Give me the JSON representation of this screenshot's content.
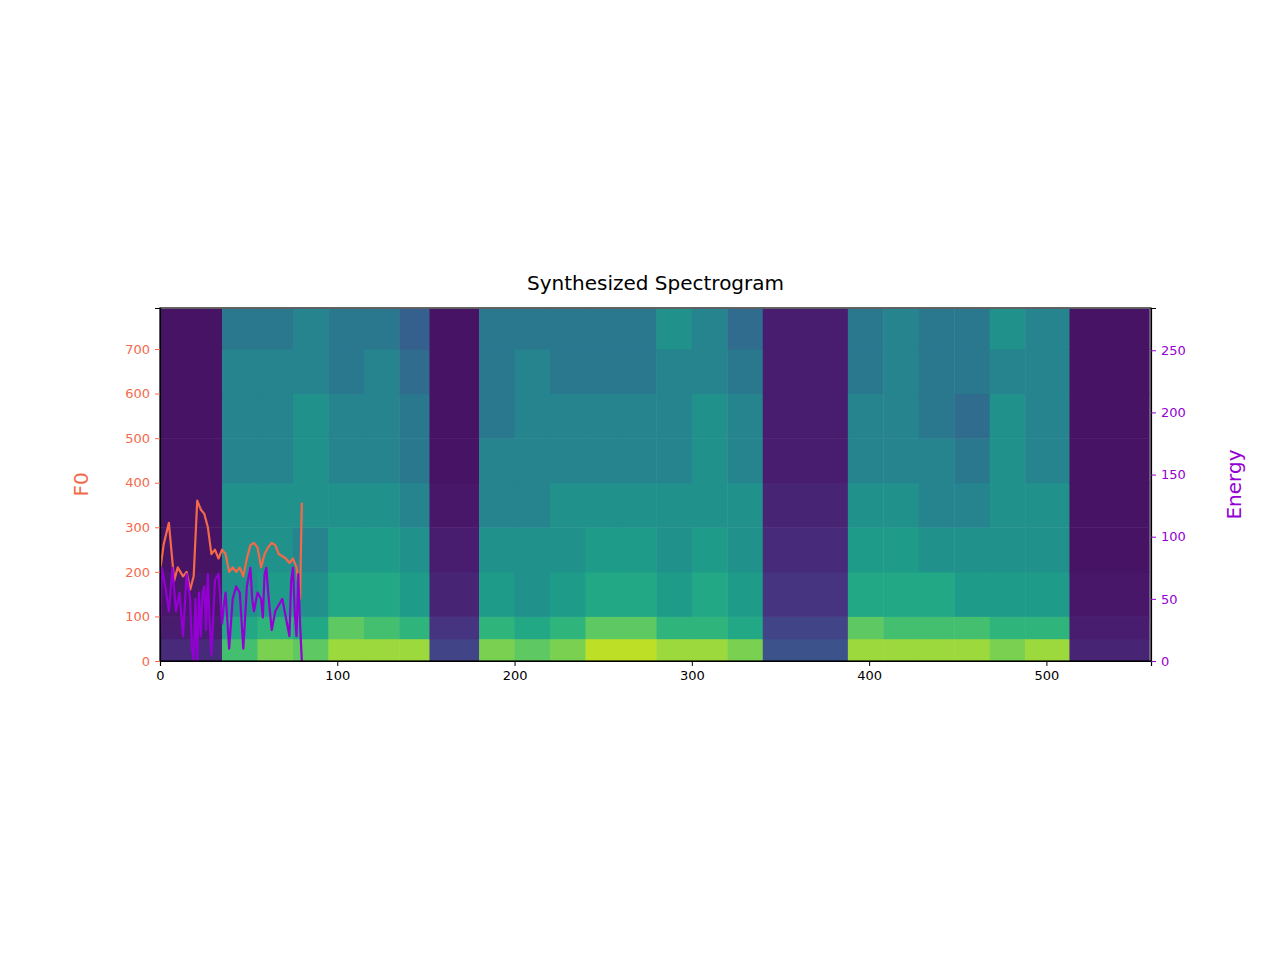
{
  "chart_data": {
    "type": "heatmap",
    "title": "Synthesized Spectrogram",
    "y_label": "F0",
    "y2_label": "Energy",
    "xlim": [
      0,
      559
    ],
    "ylim": [
      0,
      792
    ],
    "y2lim": [
      0,
      284
    ],
    "xticks": [
      0,
      100,
      200,
      300,
      400,
      500
    ],
    "yticks": [
      0,
      100,
      200,
      300,
      400,
      500,
      600,
      700
    ],
    "y2ticks": [
      0,
      50,
      100,
      150,
      200,
      250
    ],
    "heatmap": {
      "x_edges": [
        0,
        35,
        55,
        75,
        95,
        115,
        135,
        152,
        180,
        200,
        220,
        240,
        260,
        280,
        300,
        320,
        340,
        388,
        408,
        428,
        448,
        468,
        488,
        513,
        558
      ],
      "y_edges": [
        0,
        50,
        100,
        200,
        300,
        400,
        500,
        600,
        700,
        790
      ],
      "color_range": [
        0,
        1
      ],
      "cells": [
        [
          0.12,
          0.08,
          0.06,
          0.05,
          0.05,
          0.05,
          0.05,
          0.05,
          0.05
        ],
        [
          0.7,
          0.6,
          0.5,
          0.5,
          0.5,
          0.45,
          0.45,
          0.45,
          0.4
        ],
        [
          0.8,
          0.65,
          0.55,
          0.5,
          0.5,
          0.45,
          0.45,
          0.45,
          0.4
        ],
        [
          0.75,
          0.6,
          0.5,
          0.45,
          0.5,
          0.5,
          0.5,
          0.45,
          0.45
        ],
        [
          0.85,
          0.75,
          0.6,
          0.55,
          0.5,
          0.45,
          0.45,
          0.4,
          0.4
        ],
        [
          0.85,
          0.7,
          0.6,
          0.55,
          0.5,
          0.45,
          0.45,
          0.45,
          0.4
        ],
        [
          0.85,
          0.65,
          0.55,
          0.5,
          0.45,
          0.4,
          0.4,
          0.35,
          0.3
        ],
        [
          0.2,
          0.15,
          0.1,
          0.08,
          0.06,
          0.05,
          0.05,
          0.05,
          0.05
        ],
        [
          0.8,
          0.65,
          0.55,
          0.5,
          0.45,
          0.45,
          0.4,
          0.4,
          0.4
        ],
        [
          0.75,
          0.6,
          0.5,
          0.5,
          0.45,
          0.45,
          0.45,
          0.45,
          0.4
        ],
        [
          0.8,
          0.65,
          0.55,
          0.5,
          0.5,
          0.45,
          0.45,
          0.4,
          0.4
        ],
        [
          0.9,
          0.75,
          0.6,
          0.55,
          0.5,
          0.45,
          0.45,
          0.4,
          0.4
        ],
        [
          0.9,
          0.75,
          0.6,
          0.55,
          0.5,
          0.45,
          0.45,
          0.4,
          0.4
        ],
        [
          0.85,
          0.65,
          0.55,
          0.5,
          0.5,
          0.45,
          0.45,
          0.45,
          0.5
        ],
        [
          0.85,
          0.65,
          0.6,
          0.55,
          0.5,
          0.5,
          0.5,
          0.45,
          0.45
        ],
        [
          0.8,
          0.6,
          0.55,
          0.5,
          0.5,
          0.45,
          0.45,
          0.4,
          0.35
        ],
        [
          0.25,
          0.2,
          0.15,
          0.12,
          0.1,
          0.08,
          0.08,
          0.08,
          0.08
        ],
        [
          0.85,
          0.75,
          0.6,
          0.55,
          0.5,
          0.45,
          0.45,
          0.4,
          0.4
        ],
        [
          0.85,
          0.7,
          0.6,
          0.55,
          0.5,
          0.45,
          0.45,
          0.45,
          0.45
        ],
        [
          0.85,
          0.7,
          0.6,
          0.5,
          0.45,
          0.45,
          0.4,
          0.4,
          0.4
        ],
        [
          0.85,
          0.7,
          0.55,
          0.5,
          0.45,
          0.4,
          0.35,
          0.4,
          0.4
        ],
        [
          0.8,
          0.65,
          0.55,
          0.5,
          0.5,
          0.5,
          0.5,
          0.45,
          0.5
        ],
        [
          0.85,
          0.65,
          0.55,
          0.5,
          0.5,
          0.45,
          0.45,
          0.45,
          0.45
        ],
        [
          0.1,
          0.08,
          0.06,
          0.05,
          0.05,
          0.05,
          0.05,
          0.05,
          0.05
        ]
      ]
    },
    "series": [
      {
        "type": "line",
        "color": "#f4694a",
        "x": [
          0,
          2,
          5,
          8,
          10,
          13,
          15,
          17,
          19,
          21,
          23,
          25,
          27,
          29,
          31,
          33,
          35,
          37,
          39,
          41,
          43,
          45,
          47,
          49,
          51,
          53,
          55,
          57,
          59,
          61,
          63,
          65,
          67,
          69,
          71,
          73,
          75,
          77,
          79,
          80
        ],
        "values": [
          200,
          260,
          310,
          180,
          210,
          190,
          200,
          160,
          190,
          360,
          340,
          330,
          300,
          240,
          250,
          230,
          250,
          240,
          200,
          210,
          200,
          210,
          190,
          230,
          260,
          265,
          255,
          210,
          240,
          255,
          265,
          260,
          240,
          235,
          230,
          220,
          230,
          210,
          140,
          355
        ]
      },
      {
        "type": "line",
        "color": "#9400d3",
        "axis": "y2",
        "x": [
          0,
          1,
          3,
          5,
          7,
          9,
          11,
          13,
          15,
          17,
          18,
          19,
          20,
          21,
          22,
          23,
          24,
          25,
          26,
          27,
          28,
          29,
          31,
          33,
          35,
          36,
          37,
          39,
          41,
          43,
          45,
          47,
          49,
          51,
          52,
          53,
          55,
          57,
          58,
          59,
          60,
          61,
          63,
          65,
          67,
          69,
          71,
          73,
          74,
          75,
          76,
          77,
          78,
          79,
          80
        ],
        "values": [
          20,
          75,
          60,
          40,
          75,
          40,
          55,
          20,
          70,
          50,
          10,
          0,
          50,
          0,
          55,
          20,
          55,
          60,
          25,
          70,
          30,
          5,
          65,
          70,
          30,
          45,
          55,
          10,
          50,
          60,
          55,
          10,
          60,
          75,
          50,
          40,
          55,
          50,
          35,
          70,
          75,
          55,
          25,
          40,
          45,
          50,
          35,
          20,
          65,
          75,
          40,
          20,
          70,
          30,
          0
        ]
      }
    ]
  }
}
